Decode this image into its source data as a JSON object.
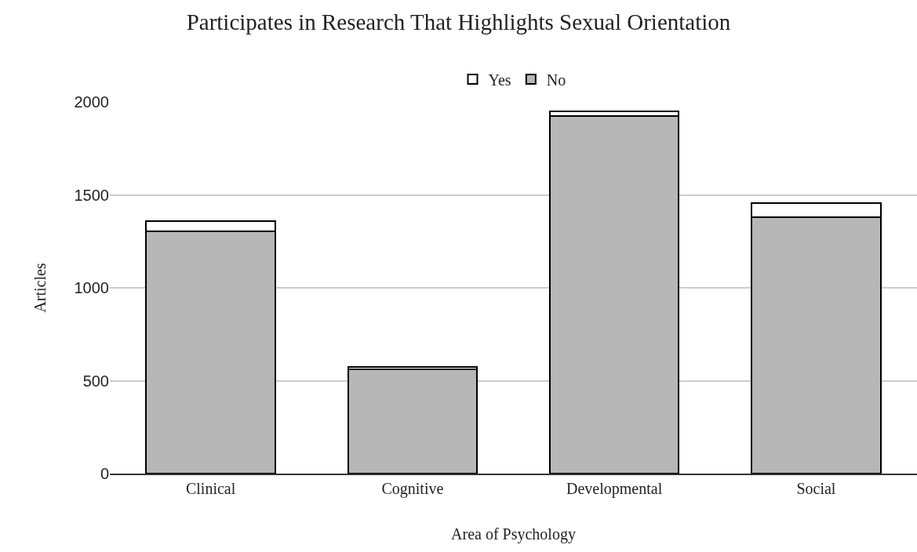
{
  "chart_data": {
    "type": "bar",
    "title": "Participates in Research That Highlights Sexual Orientation",
    "xlabel": "Area of Psychology",
    "ylabel": "Articles",
    "categories": [
      "Clinical",
      "Cognitive",
      "Developmental",
      "Social"
    ],
    "series": [
      {
        "name": "No",
        "color": "#b7b7b7",
        "values": [
          1305,
          562,
          1924,
          1380
        ]
      },
      {
        "name": "Yes",
        "color": "#ffffff",
        "values": [
          55,
          12,
          25,
          75
        ]
      }
    ],
    "stacked": true,
    "ylim": [
      0,
      2000
    ],
    "yticks": [
      0,
      500,
      1000,
      1500,
      2000
    ],
    "grid": "y",
    "legend": "top"
  }
}
